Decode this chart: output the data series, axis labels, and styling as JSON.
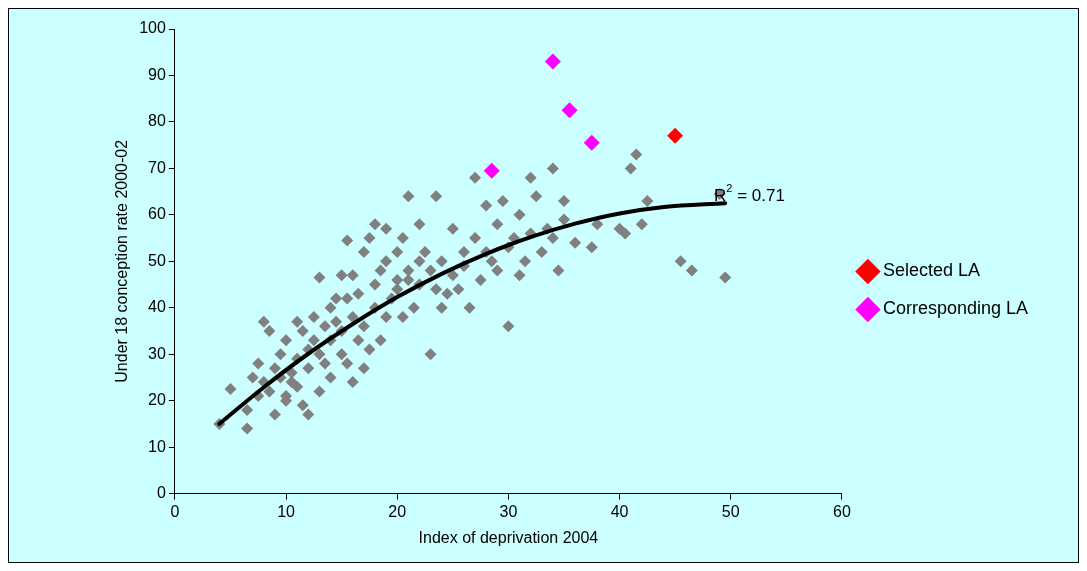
{
  "chart_data": {
    "type": "scatter",
    "xlabel": "Index of deprivation 2004",
    "ylabel": "Under 18 conception rate 2000-02",
    "xlim": [
      0,
      60
    ],
    "xticks": [
      0,
      10,
      20,
      30,
      40,
      50,
      60
    ],
    "ylim": [
      0,
      100
    ],
    "yticks": [
      0,
      10,
      20,
      30,
      40,
      50,
      60,
      70,
      80,
      90,
      100
    ],
    "grid": false,
    "legend": "right",
    "marker": "diamond",
    "annotations": [
      {
        "text": "R$^{2}$ = 0.71",
        "x": 48.5,
        "y": 63
      }
    ],
    "series": [
      {
        "color": "#808080",
        "x": [
          4,
          5,
          6.5,
          6.5,
          7,
          7.5,
          7.5,
          8,
          8,
          8.5,
          8.5,
          9,
          9,
          9.5,
          9.5,
          10,
          10,
          10,
          10.5,
          10.5,
          11,
          11,
          11,
          11.5,
          11.5,
          12,
          12,
          12,
          12.5,
          12.5,
          13,
          13,
          13,
          13.5,
          13.5,
          14,
          14,
          14,
          14.5,
          14.5,
          15,
          15,
          15,
          15.5,
          15.5,
          15.5,
          16,
          16,
          16,
          16.5,
          16.5,
          17,
          17,
          17,
          17.5,
          17.5,
          18,
          18,
          18,
          18.5,
          18.5,
          19,
          19,
          19,
          19.5,
          20,
          20,
          20,
          20.5,
          20.5,
          21,
          21,
          21,
          21.5,
          22,
          22,
          22,
          22.5,
          23,
          23,
          23.5,
          23.5,
          24,
          24,
          24.5,
          25,
          25,
          25.5,
          26,
          26,
          26.5,
          27,
          27,
          27.5,
          28,
          28,
          28.5,
          29,
          29,
          29.5,
          30,
          30,
          30.5,
          31,
          31,
          31.5,
          32,
          32,
          32.5,
          33,
          33.5,
          34,
          34,
          34.5,
          35,
          35,
          36,
          37.5,
          38,
          40,
          40.5,
          41,
          41.5,
          42,
          42.5,
          45.5,
          46.5,
          49.5,
          49
        ],
        "values": [
          15,
          22.5,
          18,
          14,
          25,
          21,
          28,
          24,
          37,
          22,
          35,
          27,
          17,
          25,
          30,
          21,
          20,
          33,
          26,
          24,
          37,
          23,
          29,
          35,
          19,
          31,
          17,
          27,
          38,
          33,
          22,
          46.5,
          30,
          36,
          28,
          40,
          25,
          33,
          42,
          37,
          30,
          47,
          35,
          28,
          54.5,
          42,
          24,
          47,
          38,
          33,
          43,
          27,
          52,
          36,
          31,
          55,
          40,
          58,
          45,
          33,
          48,
          38,
          57,
          50,
          42,
          46,
          52,
          44,
          38,
          55,
          48,
          64,
          46,
          40,
          50,
          58,
          45,
          52,
          30,
          48,
          44,
          64,
          40,
          50,
          43,
          47,
          57,
          44,
          52,
          49,
          40,
          55,
          68,
          46,
          52,
          62,
          50,
          58,
          48,
          63,
          36,
          53,
          55,
          47,
          60,
          50,
          68,
          56,
          64,
          52,
          57,
          55,
          70,
          48,
          59,
          63,
          54,
          53,
          58,
          57,
          56,
          70,
          73,
          58,
          63,
          50,
          48,
          46.5,
          64.5
        ]
      },
      {
        "name": "Selected LA",
        "color": "#ff0000",
        "x": [
          45
        ],
        "values": [
          77
        ]
      },
      {
        "name": "Corresponding LA",
        "color": "#ff00ff",
        "x": [
          28.5,
          34,
          35.5,
          37.5
        ],
        "values": [
          69.5,
          93,
          82.5,
          75.5
        ]
      },
      {
        "type": "line",
        "color": "#000000",
        "marker": "none",
        "x": [
          4,
          8,
          12,
          16,
          20,
          24,
          28,
          32,
          36,
          40,
          44,
          49.5
        ],
        "values": [
          15,
          22.9,
          30.1,
          36.5,
          42.3,
          47.3,
          51.6,
          55.2,
          58.1,
          60.3,
          61.7,
          62.5
        ]
      }
    ]
  }
}
